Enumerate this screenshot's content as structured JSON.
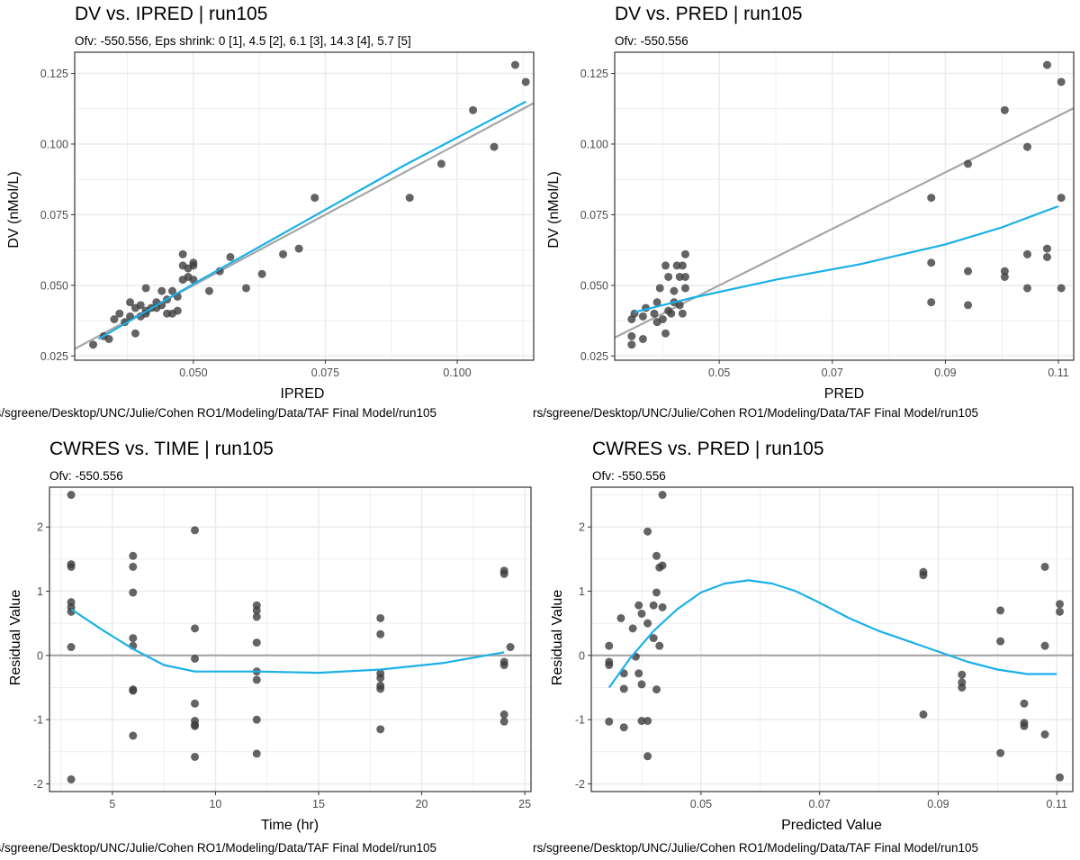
{
  "figure": {
    "caption": "rs/sgreene/Desktop/UNC/Julie/Cohen RO1/Modeling/Data/TAF Final Model/run105"
  },
  "colors": {
    "point": "#3d3d3d",
    "smooth": "#1ab0e8",
    "reference": "#a6a6a6",
    "grid": "#ebebeb",
    "panel_border": "#333333"
  },
  "chart_data": [
    {
      "type": "scatter",
      "title": "DV vs. IPRED | run105",
      "subtitle": "Ofv: -550.556, Eps shrink: 0 [1], 4.5 [2], 6.1 [3], 14.3 [4], 5.7 [5]",
      "xlabel": "IPRED",
      "ylabel": "DV (nMol/L)",
      "xlim": [
        0.0275,
        0.1145
      ],
      "ylim": [
        0.0235,
        0.1325
      ],
      "xticks": [
        0.05,
        0.075,
        0.1
      ],
      "xtick_labels": [
        "0.050",
        "0.075",
        "0.100"
      ],
      "yticks": [
        0.025,
        0.05,
        0.075,
        0.1,
        0.125
      ],
      "ytick_labels": [
        "0.025",
        "0.050",
        "0.075",
        "0.100",
        "0.125"
      ],
      "grid": true,
      "points": [
        [
          0.031,
          0.029
        ],
        [
          0.033,
          0.032
        ],
        [
          0.034,
          0.031
        ],
        [
          0.035,
          0.038
        ],
        [
          0.036,
          0.04
        ],
        [
          0.037,
          0.037
        ],
        [
          0.038,
          0.039
        ],
        [
          0.038,
          0.044
        ],
        [
          0.039,
          0.033
        ],
        [
          0.039,
          0.042
        ],
        [
          0.04,
          0.039
        ],
        [
          0.04,
          0.043
        ],
        [
          0.041,
          0.04
        ],
        [
          0.041,
          0.041
        ],
        [
          0.041,
          0.049
        ],
        [
          0.042,
          0.042
        ],
        [
          0.043,
          0.042
        ],
        [
          0.043,
          0.044
        ],
        [
          0.044,
          0.043
        ],
        [
          0.044,
          0.048
        ],
        [
          0.045,
          0.045
        ],
        [
          0.045,
          0.04
        ],
        [
          0.046,
          0.048
        ],
        [
          0.046,
          0.04
        ],
        [
          0.047,
          0.041
        ],
        [
          0.047,
          0.046
        ],
        [
          0.048,
          0.052
        ],
        [
          0.048,
          0.061
        ],
        [
          0.048,
          0.057
        ],
        [
          0.049,
          0.056
        ],
        [
          0.049,
          0.053
        ],
        [
          0.05,
          0.058
        ],
        [
          0.05,
          0.052
        ],
        [
          0.05,
          0.057
        ],
        [
          0.053,
          0.048
        ],
        [
          0.055,
          0.055
        ],
        [
          0.057,
          0.06
        ],
        [
          0.06,
          0.049
        ],
        [
          0.063,
          0.054
        ],
        [
          0.067,
          0.061
        ],
        [
          0.07,
          0.063
        ],
        [
          0.073,
          0.081
        ],
        [
          0.091,
          0.081
        ],
        [
          0.097,
          0.093
        ],
        [
          0.103,
          0.112
        ],
        [
          0.107,
          0.099
        ],
        [
          0.111,
          0.128
        ],
        [
          0.113,
          0.122
        ]
      ],
      "reference_line": {
        "x": [
          0.0275,
          0.1145
        ],
        "y": [
          0.0275,
          0.1145
        ]
      },
      "smooth": {
        "x": [
          0.032,
          0.05,
          0.07,
          0.09,
          0.113
        ],
        "y": [
          0.031,
          0.0505,
          0.0715,
          0.0925,
          0.115
        ]
      }
    },
    {
      "type": "scatter",
      "title": "DV vs. PRED | run105",
      "subtitle": "Ofv: -550.556",
      "xlabel": "PRED",
      "ylabel": "DV (nMol/L)",
      "xlim": [
        0.0315,
        0.1127
      ],
      "ylim": [
        0.0235,
        0.1325
      ],
      "xticks": [
        0.05,
        0.07,
        0.09,
        0.11
      ],
      "xtick_labels": [
        "0.05",
        "0.07",
        "0.09",
        "0.11"
      ],
      "yticks": [
        0.025,
        0.05,
        0.075,
        0.1,
        0.125
      ],
      "ytick_labels": [
        "0.025",
        "0.050",
        "0.075",
        "0.100",
        "0.125"
      ],
      "grid": true,
      "points": [
        [
          0.0345,
          0.029
        ],
        [
          0.0345,
          0.032
        ],
        [
          0.0345,
          0.038
        ],
        [
          0.035,
          0.04
        ],
        [
          0.0365,
          0.031
        ],
        [
          0.0365,
          0.039
        ],
        [
          0.037,
          0.042
        ],
        [
          0.0385,
          0.04
        ],
        [
          0.039,
          0.037
        ],
        [
          0.039,
          0.044
        ],
        [
          0.0395,
          0.049
        ],
        [
          0.04,
          0.038
        ],
        [
          0.0405,
          0.057
        ],
        [
          0.0405,
          0.033
        ],
        [
          0.041,
          0.041
        ],
        [
          0.041,
          0.053
        ],
        [
          0.0415,
          0.04
        ],
        [
          0.042,
          0.044
        ],
        [
          0.042,
          0.048
        ],
        [
          0.0425,
          0.057
        ],
        [
          0.043,
          0.053
        ],
        [
          0.043,
          0.043
        ],
        [
          0.0435,
          0.057
        ],
        [
          0.0435,
          0.04
        ],
        [
          0.044,
          0.061
        ],
        [
          0.044,
          0.049
        ],
        [
          0.044,
          0.053
        ],
        [
          0.0875,
          0.081
        ],
        [
          0.0875,
          0.058
        ],
        [
          0.0875,
          0.044
        ],
        [
          0.094,
          0.093
        ],
        [
          0.094,
          0.055
        ],
        [
          0.094,
          0.043
        ],
        [
          0.1005,
          0.112
        ],
        [
          0.1005,
          0.055
        ],
        [
          0.1005,
          0.053
        ],
        [
          0.1045,
          0.099
        ],
        [
          0.1045,
          0.061
        ],
        [
          0.1045,
          0.049
        ],
        [
          0.108,
          0.128
        ],
        [
          0.108,
          0.063
        ],
        [
          0.108,
          0.06
        ],
        [
          0.1105,
          0.122
        ],
        [
          0.1105,
          0.081
        ],
        [
          0.1105,
          0.049
        ]
      ],
      "reference_line": {
        "x": [
          0.0315,
          0.1127
        ],
        "y": [
          0.0315,
          0.1127
        ]
      },
      "smooth": {
        "x": [
          0.035,
          0.045,
          0.06,
          0.075,
          0.09,
          0.1,
          0.11
        ],
        "y": [
          0.0405,
          0.0455,
          0.052,
          0.0575,
          0.0645,
          0.0705,
          0.078
        ]
      }
    },
    {
      "type": "scatter",
      "title": "CWRES vs. TIME | run105",
      "subtitle": "Ofv: -550.556",
      "xlabel": "Time (hr)",
      "ylabel": "Residual Value",
      "xlim": [
        1.95,
        25.3
      ],
      "ylim": [
        -2.12,
        2.62
      ],
      "xticks": [
        5,
        10,
        15,
        20,
        25
      ],
      "xtick_labels": [
        "5",
        "10",
        "15",
        "20",
        "25"
      ],
      "yticks": [
        -2,
        -1,
        0,
        1,
        2
      ],
      "ytick_labels": [
        "-2",
        "-1",
        "0",
        "1",
        "2"
      ],
      "grid": true,
      "points": [
        [
          3,
          2.5
        ],
        [
          3,
          1.42
        ],
        [
          3,
          1.38
        ],
        [
          3,
          0.83
        ],
        [
          3,
          0.75
        ],
        [
          3,
          0.68
        ],
        [
          3,
          0.13
        ],
        [
          3,
          -1.93
        ],
        [
          6,
          1.55
        ],
        [
          6,
          1.38
        ],
        [
          6,
          0.98
        ],
        [
          6,
          0.27
        ],
        [
          6,
          0.15
        ],
        [
          6,
          -0.53
        ],
        [
          6,
          -0.55
        ],
        [
          6,
          -1.25
        ],
        [
          9,
          1.95
        ],
        [
          9,
          0.42
        ],
        [
          9,
          -0.05
        ],
        [
          9,
          -0.75
        ],
        [
          9,
          -1.02
        ],
        [
          9,
          -1.08
        ],
        [
          9,
          -1.1
        ],
        [
          9,
          -1.58
        ],
        [
          12,
          0.78
        ],
        [
          12,
          0.7
        ],
        [
          12,
          0.6
        ],
        [
          12,
          0.2
        ],
        [
          12,
          -0.25
        ],
        [
          12,
          -0.38
        ],
        [
          12,
          -1.0
        ],
        [
          12,
          -1.53
        ],
        [
          18,
          0.58
        ],
        [
          18,
          0.33
        ],
        [
          18,
          -0.28
        ],
        [
          18,
          -0.35
        ],
        [
          18,
          -0.47
        ],
        [
          18,
          -0.52
        ],
        [
          18,
          -1.15
        ],
        [
          24,
          1.32
        ],
        [
          24,
          1.27
        ],
        [
          24,
          -0.1
        ],
        [
          24,
          -0.15
        ],
        [
          24,
          -0.92
        ],
        [
          24,
          -1.03
        ],
        [
          24.3,
          0.13
        ]
      ],
      "reference_line": {
        "x": [
          1.95,
          25.3
        ],
        "y": [
          0,
          0
        ]
      },
      "smooth": {
        "x": [
          3,
          4.5,
          6,
          7.5,
          9,
          12,
          15,
          18,
          21,
          24
        ],
        "y": [
          0.72,
          0.4,
          0.1,
          -0.15,
          -0.25,
          -0.25,
          -0.27,
          -0.22,
          -0.12,
          0.05
        ]
      }
    },
    {
      "type": "scatter",
      "title": "CWRES vs. PRED | run105",
      "subtitle": "Ofv: -550.556",
      "xlabel": "Predicted Value",
      "ylabel": "Residual Value",
      "xlim": [
        0.0315,
        0.1127
      ],
      "ylim": [
        -2.12,
        2.62
      ],
      "xticks": [
        0.05,
        0.07,
        0.09,
        0.11
      ],
      "xtick_labels": [
        "0.05",
        "0.07",
        "0.09",
        "0.11"
      ],
      "yticks": [
        -2,
        -1,
        0,
        1,
        2
      ],
      "ytick_labels": [
        "-2",
        "-1",
        "0",
        "1",
        "2"
      ],
      "grid": true,
      "points": [
        [
          0.0345,
          0.15
        ],
        [
          0.0345,
          -0.1
        ],
        [
          0.0345,
          -0.15
        ],
        [
          0.0345,
          -1.03
        ],
        [
          0.0365,
          0.58
        ],
        [
          0.037,
          -0.28
        ],
        [
          0.037,
          -0.52
        ],
        [
          0.037,
          -1.12
        ],
        [
          0.0385,
          0.42
        ],
        [
          0.039,
          -0.02
        ],
        [
          0.0395,
          0.78
        ],
        [
          0.0395,
          -0.28
        ],
        [
          0.04,
          0.65
        ],
        [
          0.04,
          -0.45
        ],
        [
          0.04,
          -1.02
        ],
        [
          0.041,
          1.93
        ],
        [
          0.041,
          0.5
        ],
        [
          0.041,
          -1.02
        ],
        [
          0.041,
          -1.57
        ],
        [
          0.042,
          0.78
        ],
        [
          0.042,
          0.27
        ],
        [
          0.0425,
          1.55
        ],
        [
          0.0425,
          0.98
        ],
        [
          0.0425,
          -0.53
        ],
        [
          0.043,
          1.37
        ],
        [
          0.043,
          0.15
        ],
        [
          0.0435,
          2.5
        ],
        [
          0.0435,
          1.4
        ],
        [
          0.0435,
          0.75
        ],
        [
          0.0875,
          1.3
        ],
        [
          0.0875,
          1.25
        ],
        [
          0.0875,
          -0.92
        ],
        [
          0.094,
          -0.3
        ],
        [
          0.094,
          -0.42
        ],
        [
          0.094,
          -0.5
        ],
        [
          0.1005,
          0.7
        ],
        [
          0.1005,
          0.22
        ],
        [
          0.1005,
          -1.52
        ],
        [
          0.1045,
          -0.75
        ],
        [
          0.1045,
          -1.05
        ],
        [
          0.1045,
          -1.1
        ],
        [
          0.108,
          1.38
        ],
        [
          0.108,
          0.15
        ],
        [
          0.108,
          -1.23
        ],
        [
          0.1105,
          0.8
        ],
        [
          0.1105,
          0.68
        ],
        [
          0.1105,
          -1.9
        ]
      ],
      "reference_line": {
        "x": [
          0.0315,
          0.1127
        ],
        "y": [
          0,
          0
        ]
      },
      "smooth": {
        "x": [
          0.0345,
          0.038,
          0.042,
          0.046,
          0.05,
          0.054,
          0.058,
          0.062,
          0.066,
          0.07,
          0.075,
          0.08,
          0.085,
          0.09,
          0.095,
          0.1,
          0.105,
          0.11
        ],
        "y": [
          -0.5,
          -0.05,
          0.38,
          0.72,
          0.98,
          1.12,
          1.17,
          1.12,
          1.0,
          0.82,
          0.58,
          0.38,
          0.22,
          0.06,
          -0.1,
          -0.22,
          -0.29,
          -0.29
        ]
      }
    }
  ]
}
